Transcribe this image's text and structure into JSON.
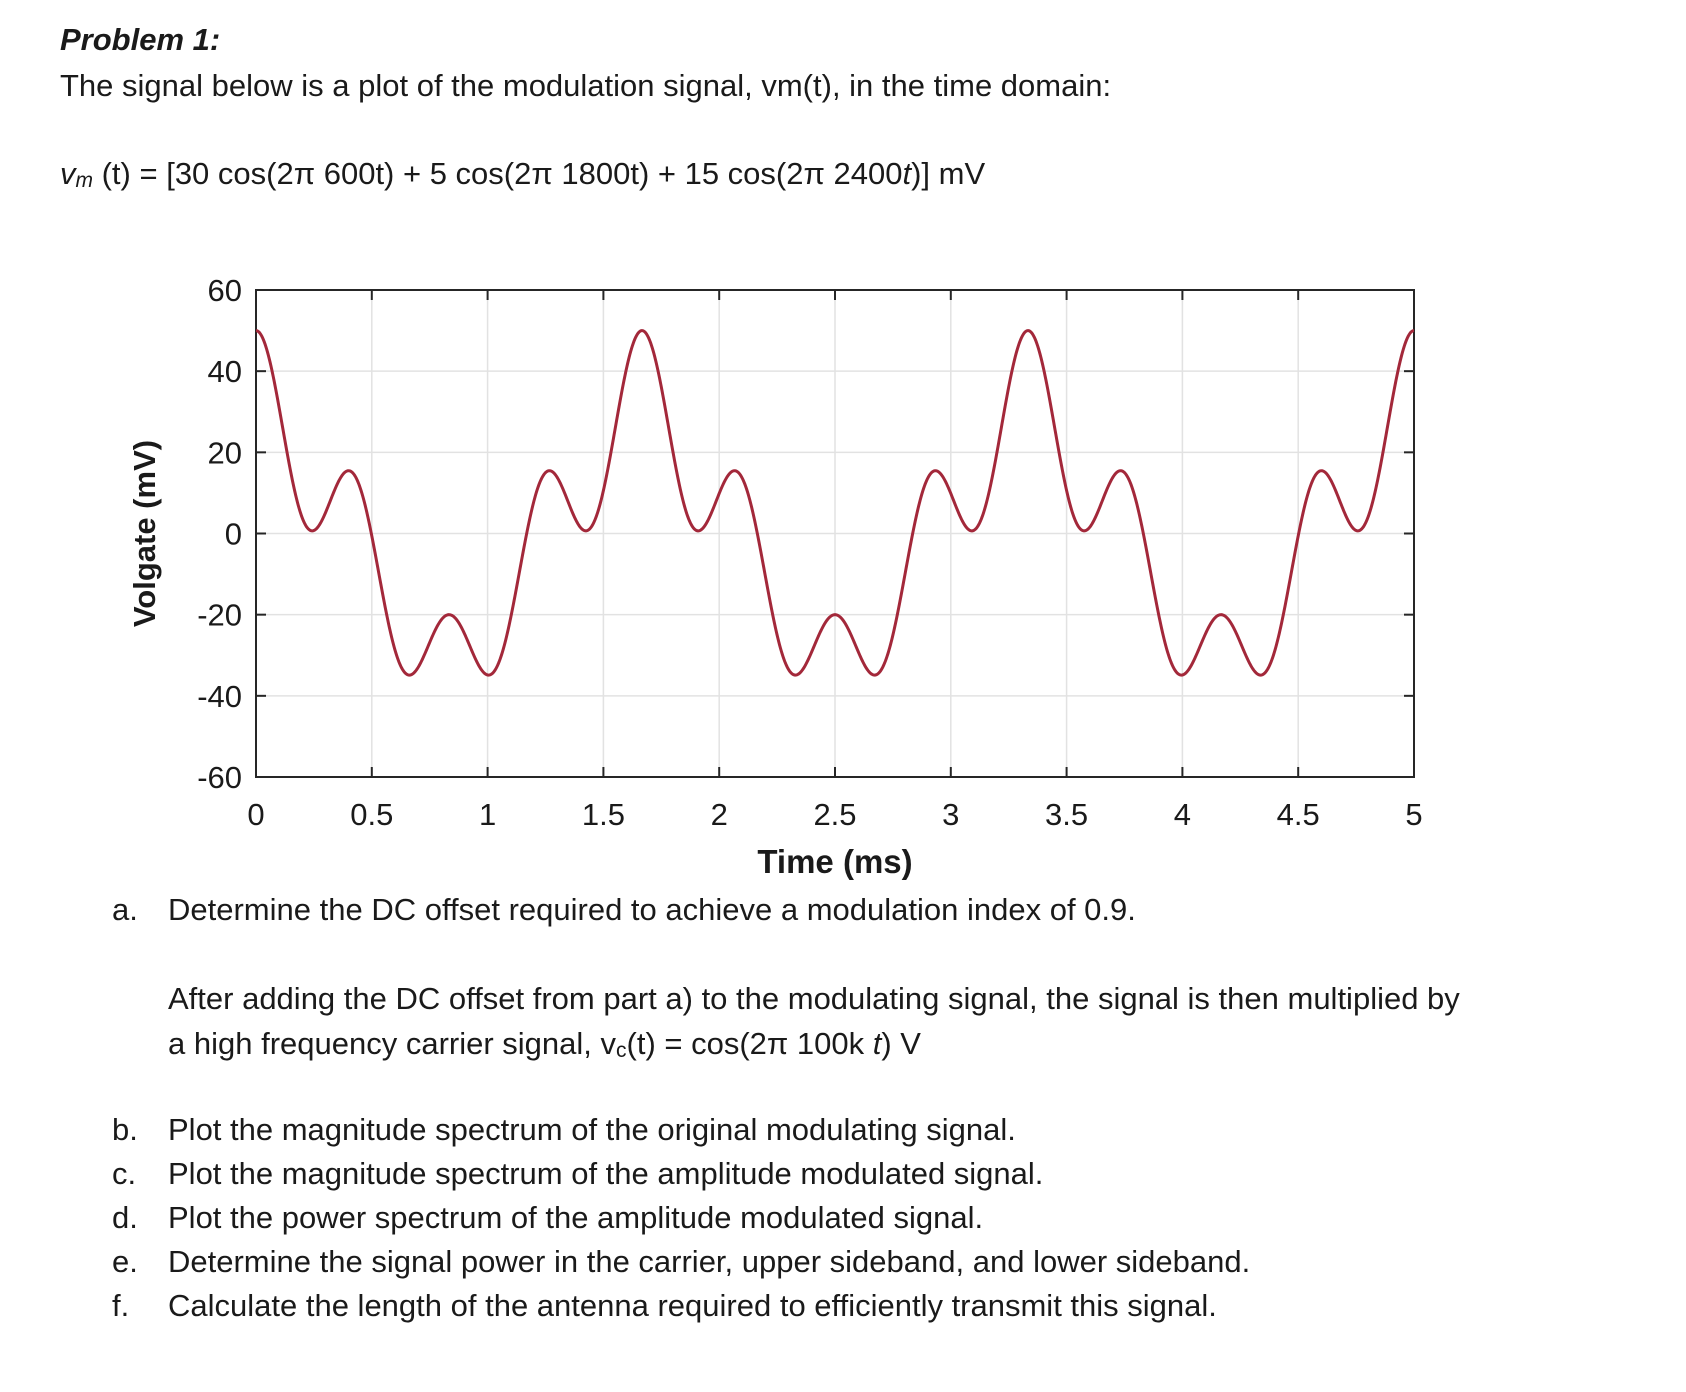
{
  "header": {
    "problem_title": "Problem 1:",
    "intro": "The signal below is a plot of the modulation signal, vm(t), in the time domain:"
  },
  "equation": {
    "lhs_v": "v",
    "lhs_sub": "m",
    "lhs_t": " (t)",
    "rhs_main": " = [30 cos(2π 600t) + 5 cos(2π 1800t) + 15 cos(2π 2400",
    "rhs_t": "t",
    "rhs_end": ")] mV",
    "rhs_unit_v": "V"
  },
  "chart_data": {
    "type": "line",
    "xlabel": "Time (ms)",
    "ylabel": "Volgate (mV)",
    "xlim": [
      0,
      5
    ],
    "ylim": [
      -60,
      60
    ],
    "x_ticks": [
      "0",
      "0.5",
      "1",
      "1.5",
      "2",
      "2.5",
      "3",
      "3.5",
      "4",
      "4.5",
      "5"
    ],
    "y_ticks": [
      "60",
      "40",
      "20",
      "0",
      "-20",
      "-40",
      "-60"
    ],
    "grid": true,
    "line_color": "#a3283a",
    "series": [
      {
        "function": "30*cos(2*pi*600*t) + 5*cos(2*pi*1800*t) + 15*cos(2*pi*2400*t)",
        "components": [
          {
            "amplitude": 30,
            "frequency": 600
          },
          {
            "amplitude": 5,
            "frequency": 1800
          },
          {
            "amplitude": 15,
            "frequency": 2400
          }
        ]
      }
    ]
  },
  "questions": {
    "a": {
      "letter": "a.",
      "text": "Determine the DC offset required to achieve a modulation index of 0.9."
    },
    "paragraph_line1": "After adding the DC offset from part a) to the modulating signal, the signal is then multiplied by",
    "paragraph_line2_pre": "a high frequency carrier signal, v",
    "paragraph_line2_sub": "c",
    "paragraph_line2_mid": "(t) = cos(2π 100k ",
    "paragraph_line2_t": "t",
    "paragraph_line2_end": ") V",
    "b": {
      "letter": "b.",
      "text": "Plot the magnitude spectrum of the original modulating signal."
    },
    "c": {
      "letter": "c.",
      "text": "Plot the magnitude spectrum of the amplitude modulated signal."
    },
    "d": {
      "letter": "d.",
      "text": "Plot the power spectrum of the amplitude modulated signal."
    },
    "e": {
      "letter": "e.",
      "text": "Determine the signal power in the carrier, upper sideband, and lower sideband."
    },
    "f": {
      "letter": "f.",
      "text": "Calculate the length of the antenna required to efficiently transmit this signal."
    }
  }
}
